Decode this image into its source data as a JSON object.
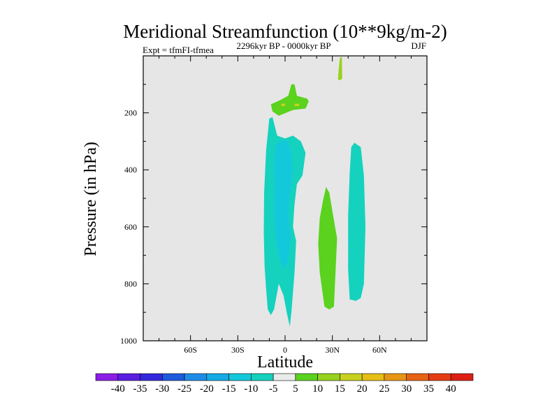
{
  "chart_data": {
    "type": "heatmap",
    "title": "Meridional Streamfunction (10**9kg/m-2)",
    "subtitle_left": "Expt = tfmFI-tfmea",
    "subtitle_center": "2296kyr BP - 0000kyr BP",
    "subtitle_right": "DJF",
    "xlabel": "Latitude",
    "ylabel": "Pressure (in hPa)",
    "xlim": [
      -90,
      90
    ],
    "ylim": [
      1000,
      0
    ],
    "x_ticks": [
      {
        "value": -60,
        "label": "60S"
      },
      {
        "value": -30,
        "label": "30S"
      },
      {
        "value": 0,
        "label": "0"
      },
      {
        "value": 30,
        "label": "30N"
      },
      {
        "value": 60,
        "label": "60N"
      }
    ],
    "y_ticks": [
      {
        "value": 200,
        "label": "200"
      },
      {
        "value": 400,
        "label": "400"
      },
      {
        "value": 600,
        "label": "600"
      },
      {
        "value": 800,
        "label": "800"
      },
      {
        "value": 1000,
        "label": "1000"
      }
    ],
    "background_color": "#e6e6e6",
    "colorbar": {
      "labels": [
        "-40",
        "-35",
        "-30",
        "-25",
        "-20",
        "-15",
        "-10",
        "-5",
        "5",
        "10",
        "15",
        "20",
        "25",
        "30",
        "35",
        "40"
      ],
      "colors": [
        "#8c1ee6",
        "#5a1ee0",
        "#3228dc",
        "#1e5adc",
        "#1e8ce6",
        "#14aae6",
        "#14c8dc",
        "#14d2be",
        "#ebebeb",
        "#5ad21e",
        "#96d21e",
        "#c8d21e",
        "#e6be14",
        "#e69614",
        "#e66414",
        "#e63c14",
        "#dc1e14"
      ]
    },
    "regions": [
      {
        "name": "upper-pocket-15-20",
        "color": "#96d21e",
        "points": [
          [
            35,
            5
          ],
          [
            36,
            5
          ],
          [
            36.2,
            80
          ],
          [
            35,
            85
          ],
          [
            33.5,
            83
          ],
          [
            34,
            50
          ],
          [
            34.5,
            20
          ]
        ]
      },
      {
        "name": "upper-pocket-5-10",
        "color": "#5ad21e",
        "points": [
          [
            4,
            100
          ],
          [
            6,
            100
          ],
          [
            7.5,
            140
          ],
          [
            14,
            150
          ],
          [
            15,
            160
          ],
          [
            13,
            185
          ],
          [
            5,
            190
          ],
          [
            -4,
            210
          ],
          [
            -8,
            195
          ],
          [
            -9,
            170
          ],
          [
            -3,
            155
          ],
          [
            2,
            140
          ]
        ]
      },
      {
        "name": "pocket-core-left",
        "color": "#c8d21e",
        "points": [
          [
            -2.5,
            168
          ],
          [
            0,
            168
          ],
          [
            0,
            176
          ],
          [
            -2.5,
            176
          ]
        ]
      },
      {
        "name": "pocket-core-right",
        "color": "#c8d21e",
        "points": [
          [
            6,
            168
          ],
          [
            9,
            168
          ],
          [
            9,
            176
          ],
          [
            6,
            176
          ]
        ]
      },
      {
        "name": "nh-cell-5-10",
        "color": "#5ad21e",
        "points": [
          [
            26,
            460
          ],
          [
            28,
            480
          ],
          [
            32,
            610
          ],
          [
            33,
            640
          ],
          [
            31,
            880
          ],
          [
            28,
            890
          ],
          [
            25,
            880
          ],
          [
            22,
            760
          ],
          [
            21,
            660
          ],
          [
            22,
            570
          ],
          [
            24,
            510
          ]
        ]
      },
      {
        "name": "nh-cell-minus5",
        "color": "#14d2be",
        "points": [
          [
            44,
            305
          ],
          [
            48,
            320
          ],
          [
            50,
            420
          ],
          [
            51,
            600
          ],
          [
            50,
            800
          ],
          [
            48,
            850
          ],
          [
            45,
            860
          ],
          [
            41,
            855
          ],
          [
            40,
            750
          ],
          [
            40,
            560
          ],
          [
            41,
            410
          ],
          [
            42,
            320
          ]
        ]
      },
      {
        "name": "sh-cell-minus5",
        "color": "#14d2be",
        "points": [
          [
            -10,
            220
          ],
          [
            -8,
            215
          ],
          [
            -5,
            280
          ],
          [
            0,
            290
          ],
          [
            5,
            280
          ],
          [
            10,
            300
          ],
          [
            13,
            340
          ],
          [
            12,
            380
          ],
          [
            11,
            420
          ],
          [
            7.5,
            450
          ],
          [
            6,
            520
          ],
          [
            5,
            600
          ],
          [
            7,
            650
          ],
          [
            6,
            760
          ],
          [
            5,
            830
          ],
          [
            4,
            900
          ],
          [
            3,
            950
          ],
          [
            1,
            900
          ],
          [
            0,
            870
          ],
          [
            -1,
            840
          ],
          [
            -4,
            800
          ],
          [
            -7,
            890
          ],
          [
            -9,
            910
          ],
          [
            -11,
            890
          ],
          [
            -12,
            820
          ],
          [
            -13,
            740
          ],
          [
            -13.5,
            620
          ],
          [
            -13.3,
            480
          ],
          [
            -12,
            330
          ]
        ]
      },
      {
        "name": "sh-cell-minus10",
        "color": "#14c8dc",
        "points": [
          [
            -6,
            310
          ],
          [
            -1,
            295
          ],
          [
            2,
            300
          ],
          [
            4,
            340
          ],
          [
            5,
            400
          ],
          [
            3,
            480
          ],
          [
            2,
            560
          ],
          [
            3.5,
            640
          ],
          [
            2,
            720
          ],
          [
            -1,
            750
          ],
          [
            -4,
            700
          ],
          [
            -6,
            640
          ],
          [
            -7,
            540
          ],
          [
            -6.5,
            460
          ],
          [
            -7,
            380
          ]
        ]
      }
    ]
  }
}
